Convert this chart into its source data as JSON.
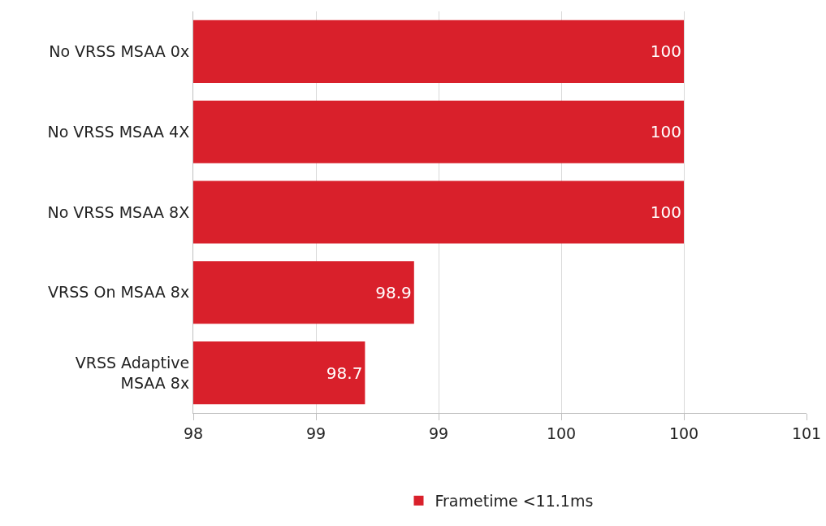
{
  "chart_data": {
    "type": "bar",
    "orientation": "horizontal",
    "categories": [
      "No VRSS MSAA 0x",
      "No VRSS MSAA 4X",
      "No VRSS MSAA 8X",
      "VRSS On MSAA 8x",
      "VRSS Adaptive MSAA 8x"
    ],
    "series": [
      {
        "name": "Frametime <11.1ms",
        "color": "#d9202b",
        "values": [
          100,
          100,
          100,
          98.9,
          98.7
        ]
      }
    ],
    "xlim": [
      98,
      100.5
    ],
    "xticks": [
      98,
      {
        "value": 98.5,
        "label": "99"
      },
      99,
      {
        "value": 99.5,
        "label": "100"
      },
      100,
      {
        "value": 100.5,
        "label": "101"
      }
    ],
    "grid": "x",
    "legend": "bottom",
    "data_labels": true
  }
}
